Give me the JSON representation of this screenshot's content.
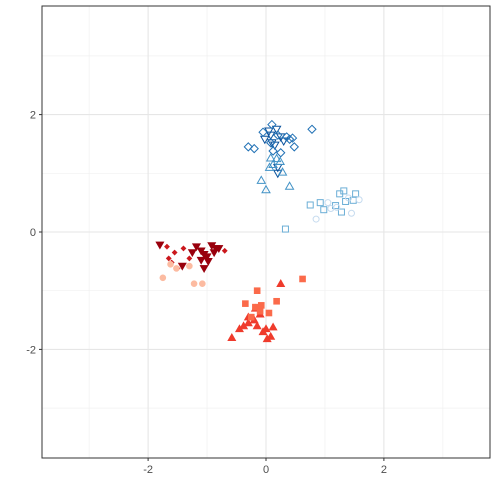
{
  "chart_data": {
    "type": "scatter",
    "title": "",
    "xlabel": "",
    "ylabel": "",
    "xlim": [
      -3.8,
      3.8
    ],
    "ylim": [
      -3.85,
      3.85
    ],
    "x_ticks": [
      -2,
      0,
      2
    ],
    "y_ticks": [
      -2,
      0,
      2
    ],
    "x_tick_labels": [
      "-2",
      "0",
      "2"
    ],
    "y_tick_labels": [
      "-2",
      "0",
      "2"
    ],
    "grid": true,
    "legend": "none",
    "series": [
      {
        "shape": "triangle-down",
        "color": "#08519c",
        "filled": false,
        "points": [
          [
            0.05,
            1.72
          ],
          [
            0.18,
            1.75
          ],
          [
            0.08,
            1.65
          ],
          [
            0.1,
            1.52
          ],
          [
            0.15,
            1.48
          ],
          [
            0.2,
            1.1
          ],
          [
            0.2,
            1.0
          ],
          [
            -0.02,
            1.58
          ],
          [
            0.25,
            1.62
          ],
          [
            0.3,
            1.55
          ]
        ]
      },
      {
        "shape": "diamond",
        "color": "#2171b5",
        "filled": false,
        "points": [
          [
            -0.3,
            1.45
          ],
          [
            -0.2,
            1.42
          ],
          [
            -0.05,
            1.7
          ],
          [
            0.1,
            1.83
          ],
          [
            0.2,
            1.65
          ],
          [
            0.35,
            1.62
          ],
          [
            0.45,
            1.6
          ],
          [
            0.48,
            1.45
          ],
          [
            0.78,
            1.75
          ],
          [
            0.12,
            1.38
          ],
          [
            0.25,
            1.35
          ],
          [
            0.4,
            1.58
          ],
          [
            0.08,
            1.52
          ]
        ]
      },
      {
        "shape": "triangle-up",
        "color": "#4292c6",
        "filled": false,
        "points": [
          [
            -0.08,
            0.88
          ],
          [
            0.0,
            0.72
          ],
          [
            0.06,
            1.1
          ],
          [
            0.12,
            1.15
          ],
          [
            0.08,
            1.26
          ],
          [
            0.18,
            1.25
          ],
          [
            0.28,
            1.02
          ],
          [
            0.4,
            0.78
          ],
          [
            0.24,
            1.2
          ]
        ]
      },
      {
        "shape": "square",
        "color": "#6baed6",
        "filled": false,
        "points": [
          [
            0.75,
            0.46
          ],
          [
            0.92,
            0.5
          ],
          [
            0.98,
            0.38
          ],
          [
            1.18,
            0.45
          ],
          [
            1.25,
            0.65
          ],
          [
            1.28,
            0.34
          ],
          [
            1.35,
            0.52
          ],
          [
            1.32,
            0.7
          ],
          [
            1.52,
            0.65
          ],
          [
            1.48,
            0.54
          ],
          [
            0.33,
            0.05
          ]
        ]
      },
      {
        "shape": "circle",
        "color": "#c6dbef",
        "filled": false,
        "points": [
          [
            0.85,
            0.22
          ],
          [
            1.1,
            0.4
          ],
          [
            1.05,
            0.5
          ],
          [
            1.45,
            0.32
          ],
          [
            1.58,
            0.55
          ],
          [
            1.4,
            0.58
          ],
          [
            1.2,
            0.42
          ]
        ]
      },
      {
        "shape": "triangle-down",
        "color": "#99000d",
        "filled": true,
        "points": [
          [
            -1.8,
            -0.22
          ],
          [
            -1.42,
            -0.58
          ],
          [
            -1.25,
            -0.35
          ],
          [
            -1.18,
            -0.25
          ],
          [
            -1.1,
            -0.32
          ],
          [
            -1.05,
            -0.38
          ],
          [
            -1.0,
            -0.42
          ],
          [
            -0.98,
            -0.5
          ],
          [
            -1.05,
            -0.62
          ],
          [
            -0.88,
            -0.35
          ],
          [
            -0.85,
            -0.28
          ],
          [
            -0.92,
            -0.23
          ],
          [
            -0.8,
            -0.28
          ],
          [
            -1.1,
            -0.48
          ]
        ]
      },
      {
        "shape": "diamond-small",
        "color": "#cb181d",
        "filled": true,
        "points": [
          [
            -1.68,
            -0.25
          ],
          [
            -1.55,
            -0.35
          ],
          [
            -1.4,
            -0.28
          ],
          [
            -1.65,
            -0.45
          ],
          [
            -1.6,
            -0.52
          ],
          [
            -1.3,
            -0.45
          ],
          [
            -0.7,
            -0.32
          ],
          [
            -1.5,
            -0.62
          ]
        ]
      },
      {
        "shape": "triangle-up",
        "color": "#ef3b2c",
        "filled": true,
        "points": [
          [
            -0.58,
            -1.8
          ],
          [
            -0.45,
            -1.65
          ],
          [
            -0.38,
            -1.6
          ],
          [
            -0.3,
            -1.55
          ],
          [
            -0.2,
            -1.5
          ],
          [
            -0.15,
            -1.6
          ],
          [
            -0.1,
            -1.4
          ],
          [
            -0.05,
            -1.7
          ],
          [
            0.0,
            -1.65
          ],
          [
            0.02,
            -1.82
          ],
          [
            0.08,
            -1.78
          ],
          [
            0.12,
            -1.62
          ],
          [
            0.25,
            -0.88
          ],
          [
            -0.3,
            -1.45
          ],
          [
            -0.18,
            -1.3
          ]
        ]
      },
      {
        "shape": "square",
        "color": "#fb6a4a",
        "filled": true,
        "points": [
          [
            -0.35,
            -1.22
          ],
          [
            -0.25,
            -1.45
          ],
          [
            -0.18,
            -1.28
          ],
          [
            -0.15,
            -1.0
          ],
          [
            -0.1,
            -1.35
          ],
          [
            -0.08,
            -1.25
          ],
          [
            0.05,
            -1.38
          ],
          [
            0.18,
            -1.18
          ],
          [
            0.62,
            -0.8
          ]
        ]
      },
      {
        "shape": "circle",
        "color": "#fcbba1",
        "filled": true,
        "points": [
          [
            -1.75,
            -0.78
          ],
          [
            -1.62,
            -0.55
          ],
          [
            -1.52,
            -0.62
          ],
          [
            -1.22,
            -0.88
          ],
          [
            -1.08,
            -0.88
          ],
          [
            -1.3,
            -0.58
          ]
        ]
      }
    ]
  }
}
